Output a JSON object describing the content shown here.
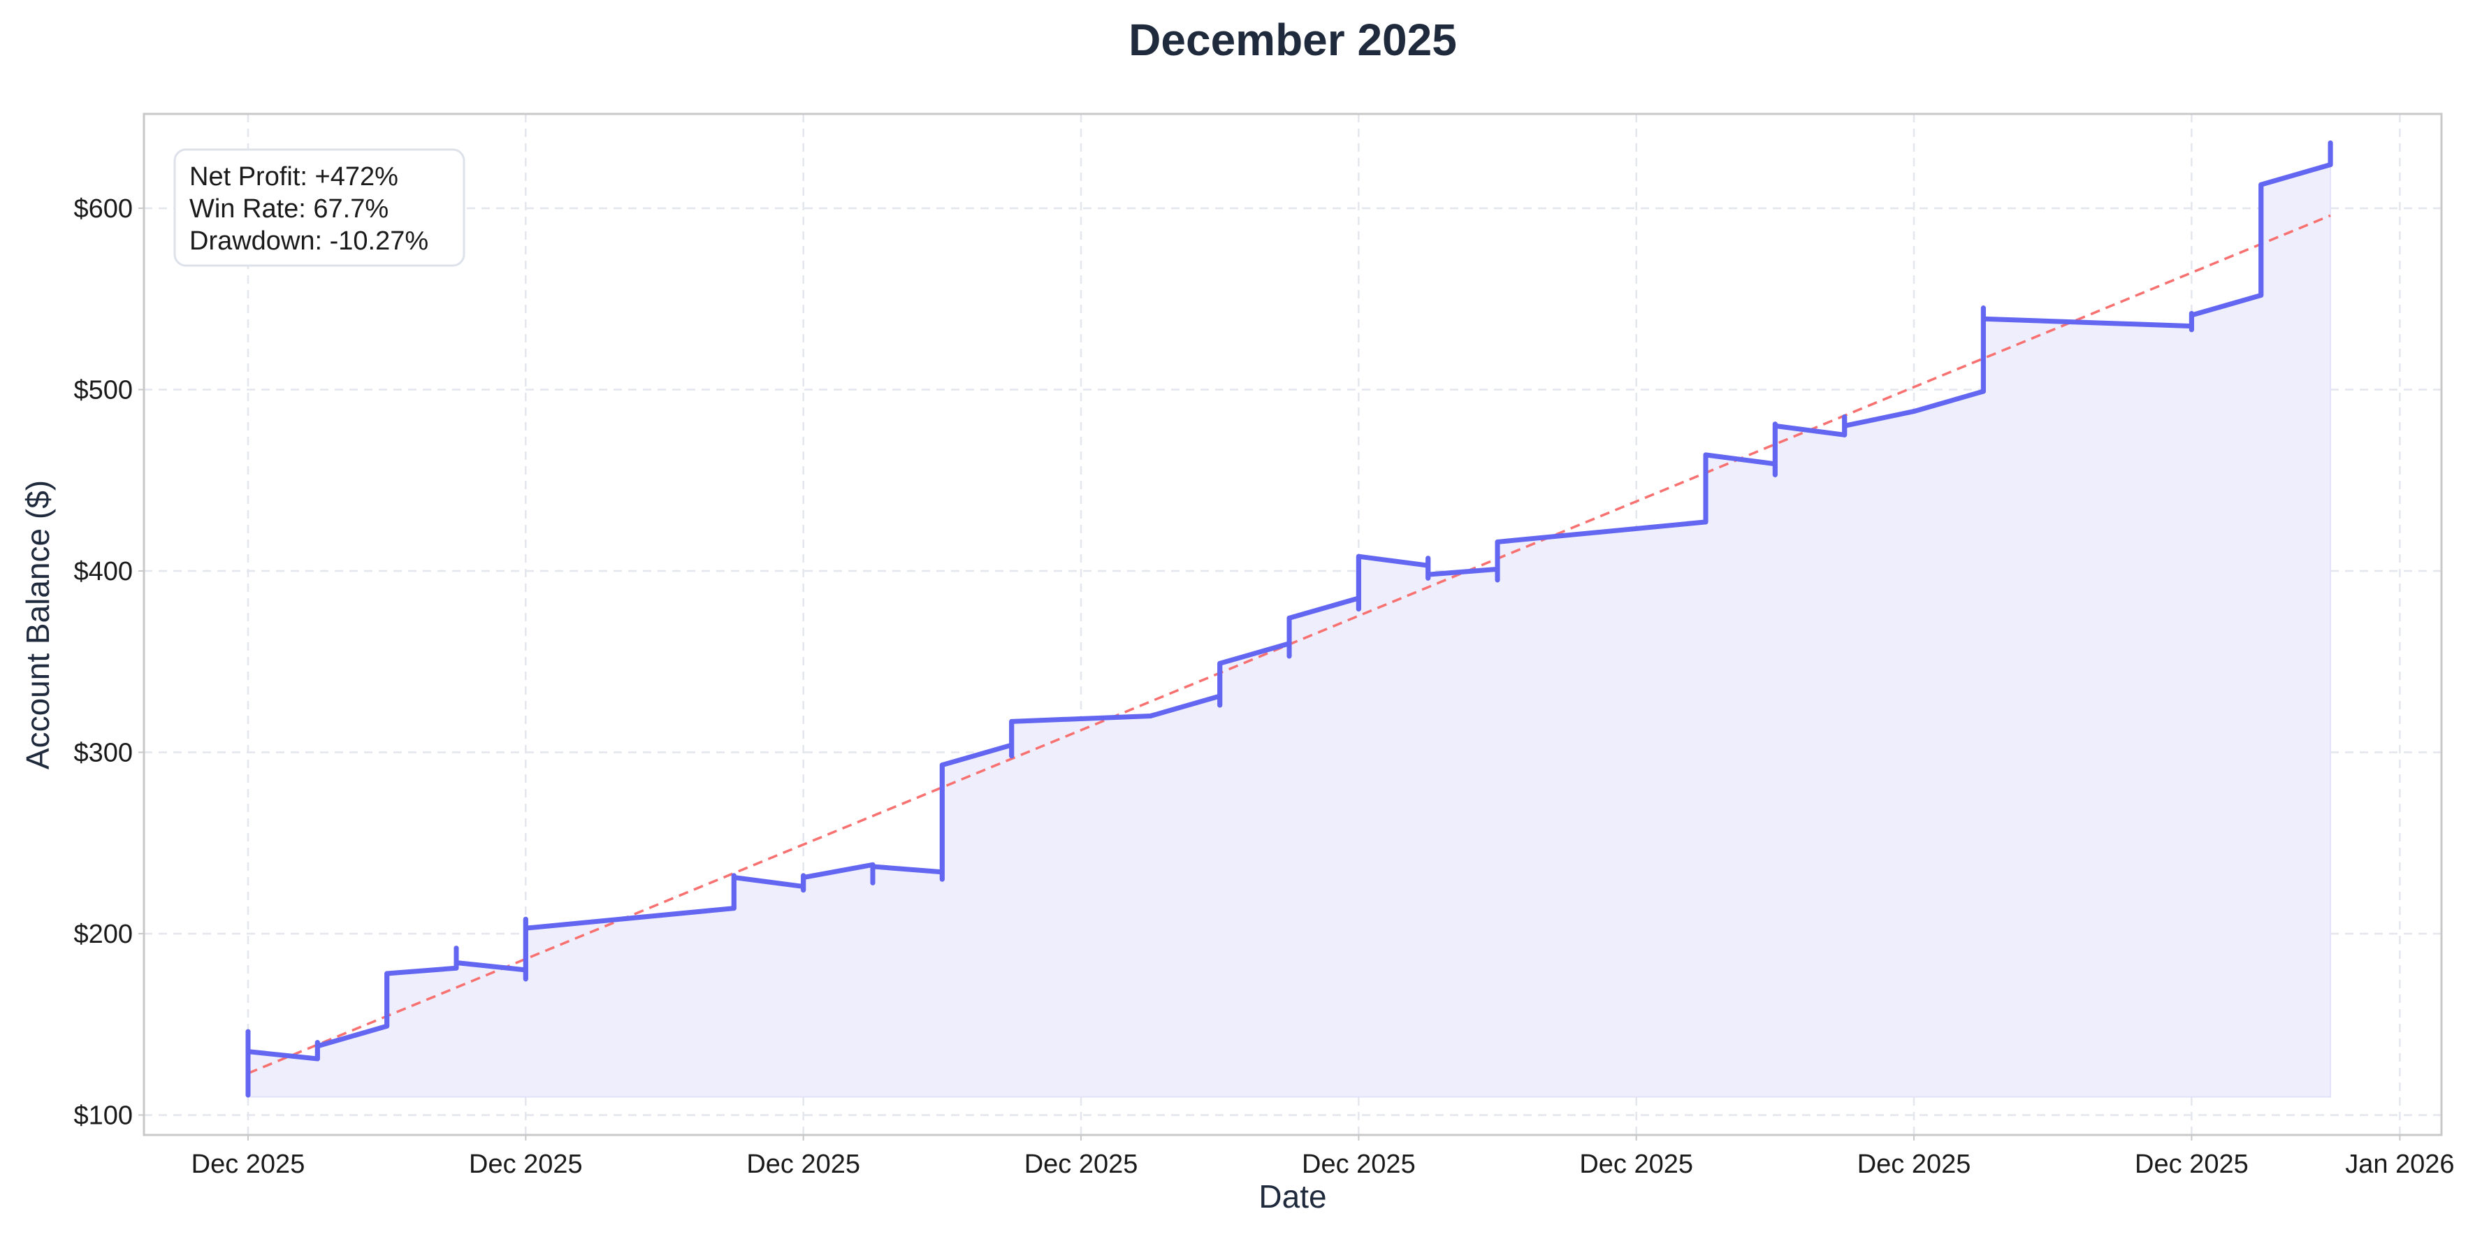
{
  "chart_data": {
    "type": "line",
    "title": "December 2025",
    "xlabel": "Date",
    "ylabel": "Account Balance ($)",
    "y_axis": {
      "ylim": [
        89,
        652
      ],
      "ticks": [
        100,
        200,
        300,
        400,
        500,
        600
      ],
      "tick_labels": [
        "$100",
        "$200",
        "$300",
        "$400",
        "$500",
        "$600"
      ]
    },
    "x_axis": {
      "xlim": [
        -0.75,
        15.8
      ],
      "ticks": [
        0,
        2,
        4,
        6,
        8,
        10,
        12,
        14,
        15.5
      ],
      "tick_labels": [
        "Dec 2025",
        "Dec 2025",
        "Dec 2025",
        "Dec 2025",
        "Dec 2025",
        "Dec 2025",
        "Dec 2025",
        "Dec 2025",
        "Jan 2026"
      ]
    },
    "grid": true,
    "fill_baseline": 110,
    "series": [
      {
        "style": "solid",
        "color": "#6366f1",
        "points": [
          {
            "x": 0.0,
            "open": 135,
            "high": 146,
            "low": 111,
            "close": 135
          },
          {
            "x": 0.5,
            "open": 131,
            "high": 140,
            "low": 131,
            "close": 138
          },
          {
            "x": 1.0,
            "open": 149,
            "high": 178,
            "low": 149,
            "close": 178
          },
          {
            "x": 1.5,
            "open": 181,
            "high": 192,
            "low": 181,
            "close": 184
          },
          {
            "x": 2.0,
            "open": 180,
            "high": 208,
            "low": 175,
            "close": 203
          },
          {
            "x": 3.5,
            "open": 214,
            "high": 232,
            "low": 214,
            "close": 231
          },
          {
            "x": 4.0,
            "open": 226,
            "high": 232,
            "low": 224,
            "close": 231
          },
          {
            "x": 4.5,
            "open": 238,
            "high": 238,
            "low": 228,
            "close": 237
          },
          {
            "x": 5.0,
            "open": 234,
            "high": 293,
            "low": 230,
            "close": 293
          },
          {
            "x": 5.5,
            "open": 304,
            "high": 317,
            "low": 298,
            "close": 317
          },
          {
            "x": 6.5,
            "open": 320,
            "high": 320,
            "low": 320,
            "close": 320
          },
          {
            "x": 7.0,
            "open": 331,
            "high": 349,
            "low": 326,
            "close": 349
          },
          {
            "x": 7.5,
            "open": 360,
            "high": 374,
            "low": 353,
            "close": 374
          },
          {
            "x": 8.0,
            "open": 385,
            "high": 408,
            "low": 379,
            "close": 408
          },
          {
            "x": 8.5,
            "open": 403,
            "high": 407,
            "low": 396,
            "close": 398
          },
          {
            "x": 9.0,
            "open": 401,
            "high": 416,
            "low": 395,
            "close": 416
          },
          {
            "x": 10.5,
            "open": 427,
            "high": 464,
            "low": 427,
            "close": 464
          },
          {
            "x": 11.0,
            "open": 459,
            "high": 481,
            "low": 453,
            "close": 480
          },
          {
            "x": 11.5,
            "open": 475,
            "high": 485,
            "low": 475,
            "close": 480
          },
          {
            "x": 12.0,
            "open": 488,
            "high": 488,
            "low": 488,
            "close": 488
          },
          {
            "x": 12.5,
            "open": 499,
            "high": 545,
            "low": 499,
            "close": 539
          },
          {
            "x": 14.0,
            "open": 535,
            "high": 542,
            "low": 533,
            "close": 541
          },
          {
            "x": 14.5,
            "open": 552,
            "high": 613,
            "low": 552,
            "close": 613
          },
          {
            "x": 15.0,
            "open": 624,
            "high": 636,
            "low": 624,
            "close": 636
          }
        ]
      },
      {
        "style": "dashed",
        "color": "#f87171",
        "kind": "trend",
        "points": [
          {
            "x": 0.0,
            "y": 123
          },
          {
            "x": 15.0,
            "y": 596
          }
        ]
      }
    ]
  },
  "stats_box": {
    "lines": [
      "Net Profit: +472%",
      "Win Rate: 67.7%",
      "Drawdown: -10.27%"
    ]
  },
  "colors": {
    "line": "#6366f1",
    "fill": "#eeeefc",
    "trend": "#f87171",
    "grid": "#e4e6ee",
    "axes": "#c8c8c8",
    "text": "#1f2a3d"
  }
}
